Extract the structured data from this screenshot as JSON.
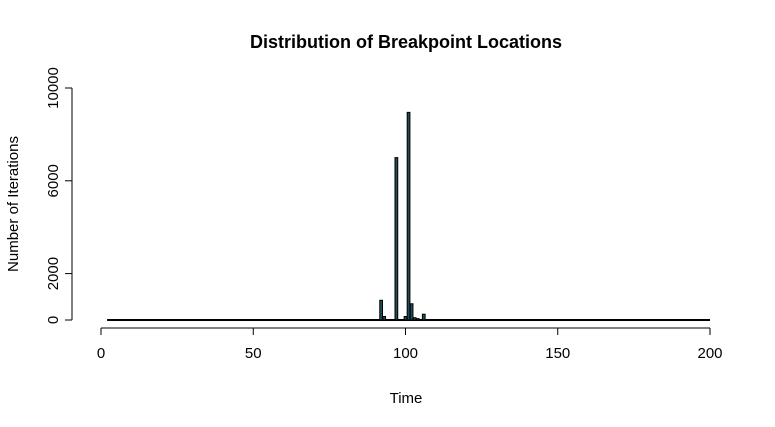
{
  "chart_data": {
    "type": "bar",
    "title": "Distribution of Breakpoint Locations",
    "xlabel": "Time",
    "ylabel": "Number of Iterations",
    "xlim": [
      0,
      200
    ],
    "ylim": [
      0,
      10000
    ],
    "x_ticks": [
      0,
      50,
      100,
      150,
      200
    ],
    "y_ticks": [
      0,
      2000,
      6000,
      10000
    ],
    "bar_fill_color": "#1f4e5a",
    "bar_border_color": "#000000",
    "baseline": {
      "x_start": 2,
      "x_end": 200,
      "value": 0
    },
    "bars": [
      {
        "x": 92,
        "y": 850
      },
      {
        "x": 93,
        "y": 150
      },
      {
        "x": 97,
        "y": 7000
      },
      {
        "x": 100,
        "y": 150
      },
      {
        "x": 101,
        "y": 8950
      },
      {
        "x": 102,
        "y": 700
      },
      {
        "x": 103,
        "y": 100
      },
      {
        "x": 104,
        "y": 60
      },
      {
        "x": 106,
        "y": 250
      }
    ]
  }
}
